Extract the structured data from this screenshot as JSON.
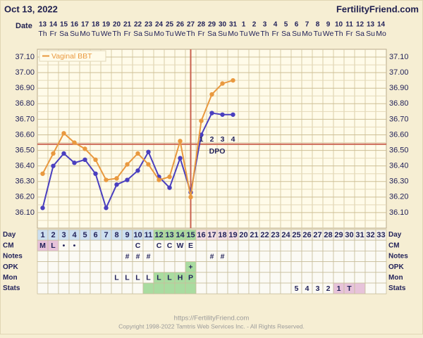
{
  "header": {
    "date": "Oct 13, 2022",
    "site": "FertilityFriend.com"
  },
  "chart_data": {
    "type": "line",
    "date_label": "Date",
    "dates": [
      "13",
      "14",
      "15",
      "16",
      "17",
      "18",
      "19",
      "20",
      "21",
      "22",
      "23",
      "24",
      "25",
      "26",
      "27",
      "28",
      "29",
      "30",
      "31",
      "1",
      "2",
      "3",
      "4",
      "5",
      "6",
      "7",
      "8",
      "9",
      "10",
      "11",
      "12",
      "13",
      "14"
    ],
    "weekdays": [
      "Th",
      "Fr",
      "Sa",
      "Su",
      "Mo",
      "Tu",
      "We",
      "Th",
      "Fr",
      "Sa",
      "Su",
      "Mo",
      "Tu",
      "We",
      "Th",
      "Fr",
      "Sa",
      "Su",
      "Mo",
      "Tu",
      "We",
      "Th",
      "Fr",
      "Sa",
      "Su",
      "Mo",
      "Tu",
      "We",
      "Th",
      "Fr",
      "Sa",
      "Su",
      "Mo"
    ],
    "series": [
      {
        "color": "#4a3fbf",
        "values": [
          36.13,
          36.4,
          36.48,
          36.42,
          36.44,
          36.35,
          36.13,
          36.28,
          36.31,
          36.37,
          36.49,
          36.33,
          36.26,
          36.45,
          36.23,
          36.6,
          36.74,
          36.73,
          36.73,
          null,
          null,
          null,
          null,
          null,
          null,
          null,
          null,
          null,
          null,
          null,
          null,
          null,
          null
        ]
      },
      {
        "name": "Vaginal BBT",
        "color": "#e9993f",
        "values": [
          36.35,
          36.48,
          36.61,
          36.55,
          36.51,
          36.44,
          36.31,
          36.32,
          36.41,
          36.48,
          36.41,
          36.31,
          36.33,
          36.56,
          36.2,
          36.69,
          36.86,
          36.93,
          36.95,
          null,
          null,
          null,
          null,
          null,
          null,
          null,
          null,
          null,
          null,
          null,
          null,
          null,
          null
        ]
      }
    ],
    "ylim": [
      36.0,
      37.15
    ],
    "yticks": [
      {
        "value": 36.1,
        "label": "36.10"
      },
      {
        "value": 36.2,
        "label": "36.20"
      },
      {
        "value": 36.3,
        "label": "36.30"
      },
      {
        "value": 36.4,
        "label": "36.40"
      },
      {
        "value": 36.5,
        "label": "36.50"
      },
      {
        "value": 36.6,
        "label": "36.60"
      },
      {
        "value": 36.7,
        "label": "36.70"
      },
      {
        "value": 36.8,
        "label": "36.80"
      },
      {
        "value": 36.9,
        "label": "36.90"
      },
      {
        "value": 37.0,
        "label": "37.00"
      },
      {
        "value": 37.1,
        "label": "37.10"
      }
    ],
    "coverline": 36.54,
    "line_color": "#c8624f",
    "ovulation_day": 15,
    "dpo_values": [
      1,
      2,
      3,
      4
    ],
    "dpo_label": "DPO"
  },
  "table": {
    "rows": [
      {
        "label": "Day",
        "cells": [
          1,
          2,
          3,
          4,
          5,
          6,
          7,
          8,
          9,
          10,
          11,
          12,
          13,
          14,
          15,
          16,
          17,
          18,
          19,
          20,
          21,
          22,
          23,
          24,
          25,
          26,
          27,
          28,
          29,
          30,
          31,
          32,
          33
        ]
      },
      {
        "label": "CM",
        "cells": [
          "M",
          "L",
          "•",
          "•",
          null,
          null,
          null,
          null,
          null,
          "C",
          null,
          "C",
          "C",
          "W",
          "E",
          null,
          null,
          null,
          null,
          null,
          null,
          null,
          null,
          null,
          null,
          null,
          null,
          null,
          null,
          null,
          null,
          null,
          null
        ]
      },
      {
        "label": "Notes",
        "cells": [
          null,
          null,
          null,
          null,
          null,
          null,
          null,
          null,
          "#",
          "#",
          "#",
          null,
          null,
          null,
          null,
          null,
          "#",
          "#",
          null,
          null,
          null,
          null,
          null,
          null,
          null,
          null,
          null,
          null,
          null,
          null,
          null,
          null,
          null
        ]
      },
      {
        "label": "OPK",
        "cells": [
          null,
          null,
          null,
          null,
          null,
          null,
          null,
          null,
          null,
          null,
          null,
          null,
          null,
          null,
          "+",
          null,
          null,
          null,
          null,
          null,
          null,
          null,
          null,
          null,
          null,
          null,
          null,
          null,
          null,
          null,
          null,
          null,
          null
        ]
      },
      {
        "label": "Mon",
        "cells": [
          null,
          null,
          null,
          null,
          null,
          null,
          null,
          "L",
          "L",
          "L",
          "L",
          "L",
          "L",
          "H",
          "P",
          null,
          null,
          null,
          null,
          null,
          null,
          null,
          null,
          null,
          null,
          null,
          null,
          null,
          null,
          null,
          null,
          null,
          null
        ]
      },
      {
        "label": "Stats",
        "cells": [
          null,
          null,
          null,
          null,
          null,
          null,
          null,
          null,
          null,
          null,
          null,
          null,
          null,
          null,
          null,
          null,
          null,
          null,
          null,
          null,
          null,
          null,
          null,
          null,
          "5",
          "4",
          "3",
          "2",
          "1",
          "T",
          null,
          null,
          null
        ]
      }
    ]
  },
  "footer": {
    "url": "https://FertilityFriend.com",
    "copyright": "Copyright 1998-2022 Tamtris Web Services Inc. - All Rights Reserved."
  }
}
